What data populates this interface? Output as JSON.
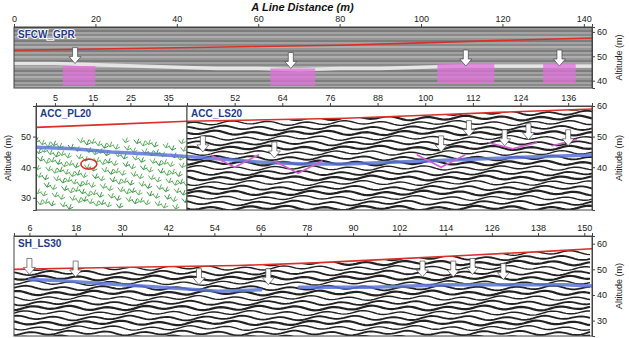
{
  "chart_data": [
    {
      "type": "line",
      "title": "SFCW_GPR",
      "x_label": "A Line Distance (m)",
      "y_label": "Altitude (m)",
      "xlim": [
        0,
        142
      ],
      "xticks": [
        0,
        20,
        40,
        60,
        80,
        100,
        120,
        140
      ],
      "ylim": [
        37,
        62
      ],
      "yticks": [
        40,
        50,
        60
      ],
      "series": [
        {
          "type": "line",
          "color": "#d9302a",
          "x": [
            0,
            20,
            40,
            60,
            80,
            100,
            120,
            142
          ],
          "values": [
            52.5,
            53,
            53.5,
            54,
            54.5,
            55.5,
            56.5,
            57.5
          ]
        },
        {
          "type": "line",
          "color": "#f2f2f2",
          "x": [
            0,
            10,
            20,
            30,
            40,
            50,
            60,
            70,
            80,
            90,
            100,
            110,
            120,
            130,
            142
          ],
          "values": [
            47,
            47,
            46.5,
            46,
            45.5,
            45,
            45,
            44.5,
            45,
            45,
            45.5,
            46,
            46,
            46,
            46
          ]
        },
        {
          "type": "rect",
          "color": "#e070dc",
          "x": [
            12,
            63,
            104,
            130
          ],
          "x2": [
            20,
            74,
            118,
            138
          ],
          "values": [
            46,
            45,
            47,
            47
          ],
          "base": [
            38,
            38,
            39,
            39
          ]
        },
        {
          "type": "scatter",
          "marker": "arrow",
          "color": "#ffffff",
          "x": [
            15,
            68,
            111,
            134
          ],
          "values": [
            47,
            45,
            46,
            46
          ]
        }
      ]
    },
    {
      "type": "line",
      "title": "ACC_PL20",
      "y_label": "Altitude (m)",
      "xlim": [
        0,
        40
      ],
      "xticks": [
        5,
        15,
        25,
        35
      ],
      "ylim": [
        26,
        60
      ],
      "yticks": [
        30,
        40,
        50
      ],
      "series": [
        {
          "type": "line",
          "color": "#d9302a",
          "x": [
            0,
            20,
            40
          ],
          "values": [
            53,
            54,
            55
          ]
        },
        {
          "type": "line",
          "color": "#5b74d6",
          "x": [
            0,
            10,
            20,
            30,
            40
          ],
          "values": [
            46.5,
            46,
            45,
            44.3,
            43.5
          ]
        },
        {
          "type": "scatter",
          "marker": "ellipse",
          "color": "#d9302a",
          "x": [
            14
          ],
          "values": [
            41
          ]
        }
      ]
    },
    {
      "type": "line",
      "title": "ACC_LS20",
      "y_label": "Altitude (m)",
      "xlim": [
        40,
        142
      ],
      "xticks": [
        52,
        64,
        76,
        88,
        100,
        112,
        124,
        136
      ],
      "ylim": [
        26,
        60
      ],
      "yticks": [
        40,
        50,
        60
      ],
      "series": [
        {
          "type": "line",
          "color": "#d9302a",
          "x": [
            40,
            60,
            80,
            100,
            120,
            142
          ],
          "values": [
            55,
            55.5,
            56,
            57,
            58,
            59
          ]
        },
        {
          "type": "line",
          "color": "#5b74d6",
          "x": [
            40,
            50,
            60,
            70,
            80,
            90,
            100,
            110,
            120,
            130,
            142
          ],
          "values": [
            43.5,
            42.5,
            41.5,
            41,
            41,
            41.5,
            42,
            42.5,
            43,
            43.5,
            44
          ]
        },
        {
          "type": "line",
          "color": "#d060d0",
          "x": [
            46,
            52,
            58,
            60,
            62,
            68,
            74,
            90,
            98,
            104,
            110,
            112,
            116,
            122,
            128,
            130,
            132,
            138
          ],
          "values": [
            44,
            40,
            44,
            null,
            42,
            38,
            42,
            null,
            44,
            40,
            44,
            null,
            48,
            46,
            48,
            null,
            47,
            49
          ]
        },
        {
          "type": "scatter",
          "marker": "arrow",
          "color": "#ffffff",
          "x": [
            44,
            62,
            104,
            111,
            120,
            126,
            136
          ],
          "values": [
            45,
            43,
            45,
            50,
            47,
            49,
            47
          ]
        }
      ]
    },
    {
      "type": "line",
      "title": "SH_LS30",
      "y_label": "Altitude (m)",
      "xlim": [
        2,
        152
      ],
      "xticks": [
        6,
        18,
        30,
        42,
        54,
        66,
        78,
        90,
        102,
        114,
        126,
        138,
        150
      ],
      "ylim": [
        24,
        63
      ],
      "yticks": [
        30,
        40,
        50,
        60
      ],
      "series": [
        {
          "type": "line",
          "color": "#d9302a",
          "x": [
            2,
            20,
            40,
            60,
            80,
            100,
            120,
            140,
            152
          ],
          "values": [
            50,
            50.5,
            51,
            51.5,
            52.5,
            54,
            55.5,
            57,
            58
          ]
        },
        {
          "type": "line",
          "color": "#5b74d6",
          "x": [
            6,
            15,
            25,
            35,
            45,
            55,
            66,
            70,
            76,
            85,
            95,
            105,
            115,
            125,
            135,
            145,
            152
          ],
          "values": [
            46,
            45.5,
            44.5,
            43.5,
            42.5,
            41.5,
            42,
            null,
            43,
            43,
            43,
            43.5,
            44,
            44,
            44,
            44,
            43.5
          ]
        },
        {
          "type": "scatter",
          "marker": "arrow",
          "color": "#ffffff",
          "x": [
            6,
            18,
            50,
            68,
            108,
            116,
            121,
            129
          ],
          "values": [
            48,
            47,
            44,
            44,
            47,
            47,
            48,
            46
          ]
        }
      ]
    }
  ]
}
